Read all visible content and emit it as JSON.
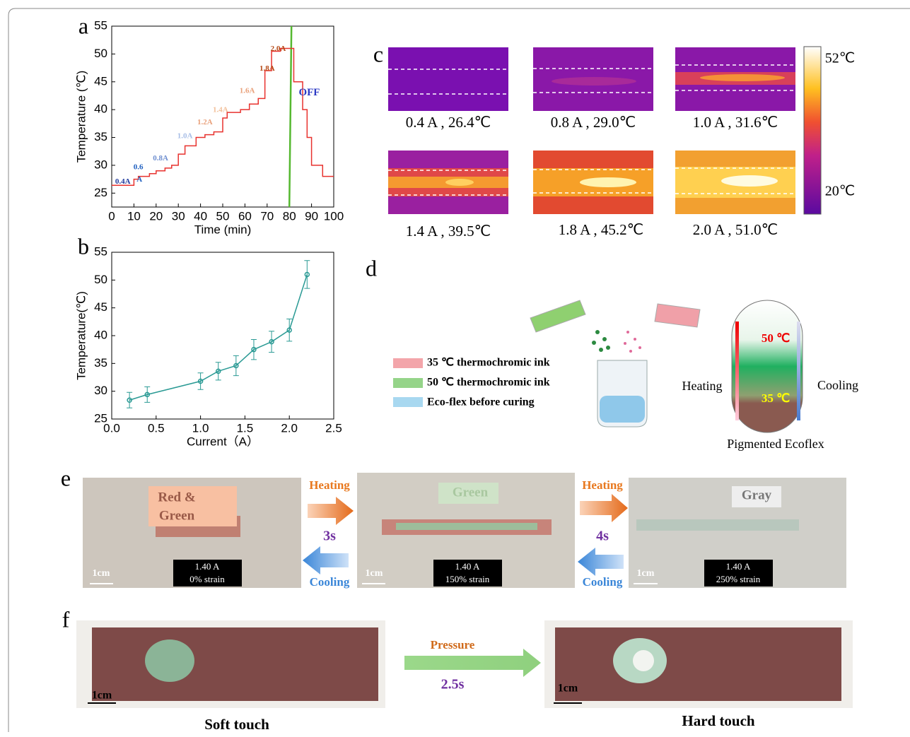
{
  "panel_labels": [
    "a",
    "b",
    "c",
    "d",
    "e",
    "f"
  ],
  "chart_data": [
    {
      "type": "line",
      "x_label": "Time (min)",
      "y_label": "Temperature (℃)",
      "x": [
        0,
        10,
        10,
        12,
        12,
        17,
        17,
        20,
        20,
        24,
        24,
        27,
        27,
        30,
        30,
        33,
        33,
        38,
        38,
        42,
        42,
        46,
        46,
        50,
        50,
        52,
        52,
        58,
        58,
        62,
        62,
        66,
        66,
        69,
        69,
        72,
        72,
        76,
        76,
        82,
        82,
        86,
        86,
        88,
        88,
        90,
        90,
        92,
        92,
        95,
        95,
        100
      ],
      "values": [
        26.4,
        26.4,
        27.5,
        27.5,
        28,
        28,
        28.5,
        28.5,
        29,
        29,
        29.5,
        29.5,
        30,
        30,
        32,
        32,
        33.5,
        33.5,
        35,
        35,
        35.5,
        35.5,
        36,
        36,
        38.5,
        38.5,
        39.5,
        39.5,
        40,
        40,
        41,
        41,
        42,
        42,
        47,
        47,
        50.5,
        50.5,
        51,
        51,
        45,
        45,
        40,
        40,
        35,
        35,
        30,
        30,
        30,
        30,
        28,
        28
      ],
      "color": "#e8322e",
      "vline": {
        "x": 80,
        "color": "#55b830"
      },
      "xlim": [
        0,
        100
      ],
      "xticks": [
        0,
        10,
        20,
        30,
        40,
        50,
        60,
        70,
        80,
        90,
        100
      ],
      "ylim": [
        22.5,
        55
      ],
      "yticks": [
        25,
        30,
        35,
        40,
        45,
        50,
        55
      ],
      "annotations": [
        {
          "text": "0.4A",
          "color": "#1f3a9e"
        },
        {
          "text": "A",
          "color": "#1f5fbf"
        },
        {
          "text": "0.6",
          "color": "#1f5fbf"
        },
        {
          "text": "0.8A",
          "color": "#6f8fd0"
        },
        {
          "text": "1.0A",
          "color": "#a7bde6"
        },
        {
          "text": "1.2A",
          "color": "#e9a07a"
        },
        {
          "text": "1.4A",
          "color": "#f2c09a"
        },
        {
          "text": "1.6A",
          "color": "#e9a07a"
        },
        {
          "text": "1.8A",
          "color": "#b54a17"
        },
        {
          "text": "2.0A",
          "color": "#b54a17"
        },
        {
          "text": "OFF",
          "color": "#2b39c4"
        }
      ]
    },
    {
      "type": "scatter",
      "x_label": "Current（A）",
      "y_label": "Temperature(℃)",
      "x": [
        0.2,
        0.4,
        1.0,
        1.2,
        1.4,
        1.6,
        1.8,
        2.0,
        2.2
      ],
      "values": [
        28.4,
        29.4,
        31.8,
        33.6,
        34.6,
        37.5,
        38.9,
        41,
        51
      ],
      "errors": [
        1.4,
        1.4,
        1.5,
        1.6,
        1.8,
        1.8,
        1.9,
        2,
        2.5
      ],
      "color": "#2a9a94",
      "xlim": [
        0,
        2.5
      ],
      "xticks": [
        {
          "value": 0,
          "label": "0.0"
        },
        0.5,
        {
          "value": 1,
          "label": "1.0"
        },
        1.5,
        {
          "value": 2,
          "label": "2.0"
        },
        2.5
      ],
      "ylim": [
        25,
        55
      ],
      "yticks": [
        25,
        30,
        35,
        40,
        45,
        50,
        55
      ]
    }
  ],
  "thermal": {
    "captions": [
      "0.4 A , 26.4℃",
      "0.8 A , 29.0℃",
      "1.0 A , 31.6℃",
      "1.4 A ,  39.5℃",
      "1.8 A , 45.2℃",
      "2.0 A , 51.0℃"
    ],
    "colorbar_max": "52℃",
    "colorbar_min": "20℃"
  },
  "diagram": {
    "legend": [
      "35 ℃ thermochromic ink",
      "50 ℃ thermochromic ink",
      "Eco-flex before curing"
    ],
    "hot": "50 ℃",
    "cold": "35 ℃",
    "heating": "Heating",
    "cooling": "Cooling",
    "caption": "Pigmented Ecoflex"
  },
  "stretch": {
    "states": [
      {
        "lines": [
          "Red &",
          "Green"
        ],
        "current": "1.40 A",
        "strain": "0% strain",
        "scale": "1cm"
      },
      {
        "lines": [
          "Green"
        ],
        "current": "1.40 A",
        "strain": "150% strain",
        "scale": "1cm"
      },
      {
        "lines": [
          "Gray"
        ],
        "current": "1.40 A",
        "strain": "250% strain",
        "scale": "1cm"
      }
    ],
    "transitions": [
      {
        "heat": "Heating",
        "time": "3s",
        "cool": "Cooling"
      },
      {
        "heat": "Heating",
        "time": "4s",
        "cool": "Cooling"
      }
    ]
  },
  "touch": {
    "left": {
      "caption": "Soft touch",
      "scale": "1cm"
    },
    "right": {
      "caption": "Hard touch",
      "scale": "1cm"
    },
    "action": "Pressure",
    "time": "2.5s"
  }
}
